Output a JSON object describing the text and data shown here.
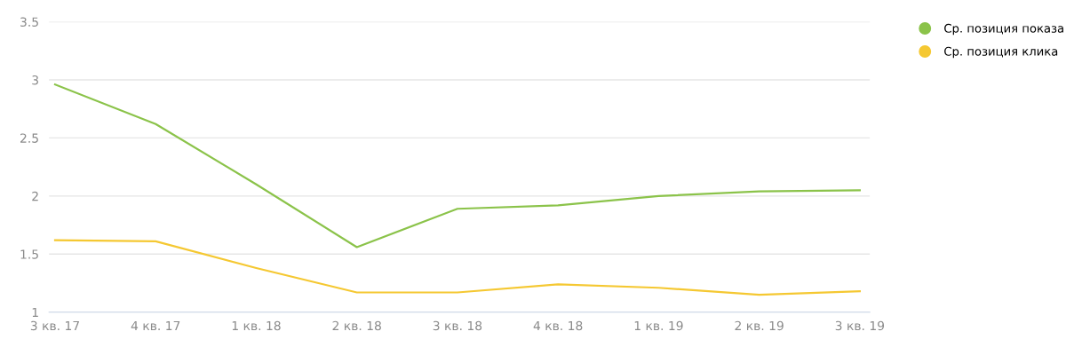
{
  "chart_data": {
    "type": "line",
    "categories": [
      "3 кв. 17",
      "4 кв. 17",
      "1 кв. 18",
      "2 кв. 18",
      "3 кв. 18",
      "4 кв. 18",
      "1 кв. 19",
      "2 кв. 19",
      "3 кв. 19"
    ],
    "series": [
      {
        "name": "Ср. позиция показа",
        "color": "#8bc34a",
        "values": [
          2.96,
          2.62,
          2.1,
          1.56,
          1.89,
          1.92,
          2.0,
          2.04,
          2.05
        ]
      },
      {
        "name": "Ср. позиция клика",
        "color": "#f5c832",
        "values": [
          1.62,
          1.61,
          1.38,
          1.17,
          1.17,
          1.24,
          1.21,
          1.15,
          1.18
        ]
      }
    ],
    "ylim": [
      1,
      3.5
    ],
    "yticks": [
      1,
      1.5,
      2,
      2.5,
      3,
      3.5
    ],
    "grid": "y",
    "legend": "top right",
    "marker": "none"
  }
}
